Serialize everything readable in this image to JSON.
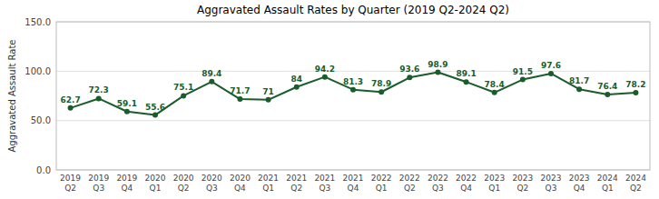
{
  "chart_data": {
    "type": "line",
    "title": "Aggravated Assault Rates by Quarter (2019 Q2-2024 Q2)",
    "ylabel": "Aggravated Assault Rate",
    "categories": [
      "2019\nQ2",
      "2019\nQ3",
      "2019\nQ4",
      "2020\nQ1",
      "2020\nQ2",
      "2020\nQ3",
      "2020\nQ4",
      "2021\nQ1",
      "2021\nQ2",
      "2021\nQ3",
      "2021\nQ4",
      "2022\nQ1",
      "2022\nQ2",
      "2022\nQ3",
      "2022\nQ4",
      "2023\nQ1",
      "2023\nQ2",
      "2023\nQ3",
      "2023\nQ4",
      "2024\nQ1",
      "2024\nQ2"
    ],
    "values": [
      62.7,
      72.3,
      59.1,
      55.6,
      75.1,
      89.4,
      71.7,
      71.0,
      84.0,
      94.2,
      81.3,
      78.9,
      93.6,
      98.9,
      89.1,
      78.4,
      91.5,
      97.6,
      81.7,
      76.4,
      78.2
    ],
    "color": "#1a5c2a",
    "marker": "circle",
    "ylim": [
      0.0,
      150.0
    ],
    "yticks": [
      {
        "value": 0.0,
        "label": "0.0"
      },
      {
        "value": 50.0,
        "label": "50.0"
      },
      {
        "value": 100.0,
        "label": "100.0"
      },
      {
        "value": 150.0,
        "label": "150.0"
      }
    ],
    "grid": true,
    "data_labels": true
  }
}
